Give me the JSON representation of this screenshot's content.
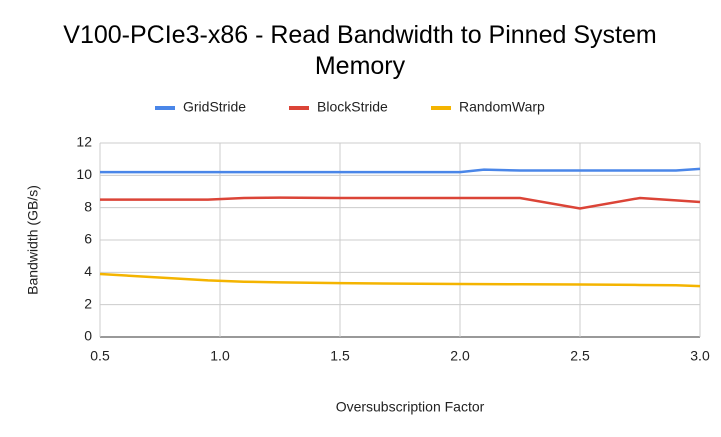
{
  "chart_data": {
    "type": "line",
    "title": "V100-PCIe3-x86 - Read Bandwidth to Pinned System Memory",
    "x_label": "Oversubscription Factor",
    "y_label": "Bandwidth (GB/s)",
    "x": [
      0.5,
      0.95,
      1.1,
      1.25,
      1.5,
      1.75,
      2.0,
      2.1,
      2.25,
      2.5,
      2.75,
      2.9,
      3.0
    ],
    "series": [
      {
        "name": "GridStride",
        "color": "#4a86e8",
        "values": [
          10.2,
          10.2,
          10.2,
          10.2,
          10.2,
          10.2,
          10.2,
          10.35,
          10.3,
          10.3,
          10.3,
          10.3,
          10.4
        ]
      },
      {
        "name": "BlockStride",
        "color": "#db4437",
        "values": [
          8.5,
          8.5,
          8.6,
          8.62,
          8.6,
          8.6,
          8.6,
          8.6,
          8.6,
          7.95,
          8.6,
          8.45,
          8.35
        ]
      },
      {
        "name": "RandomWarp",
        "color": "#f4b400",
        "values": [
          3.9,
          3.5,
          3.42,
          3.38,
          3.33,
          3.3,
          3.28,
          3.27,
          3.26,
          3.25,
          3.22,
          3.2,
          3.15
        ]
      }
    ],
    "xlim": [
      0.5,
      3.0
    ],
    "xticks": [
      0.5,
      {
        "value": 1,
        "label": "1.0"
      },
      1.5,
      {
        "value": 2,
        "label": "2.0"
      },
      2.5,
      {
        "value": 3,
        "label": "3.0"
      }
    ],
    "ylim": [
      0,
      12
    ],
    "yticks": [
      0,
      2,
      4,
      6,
      8,
      10,
      12
    ],
    "grid": true,
    "legend": "top"
  }
}
